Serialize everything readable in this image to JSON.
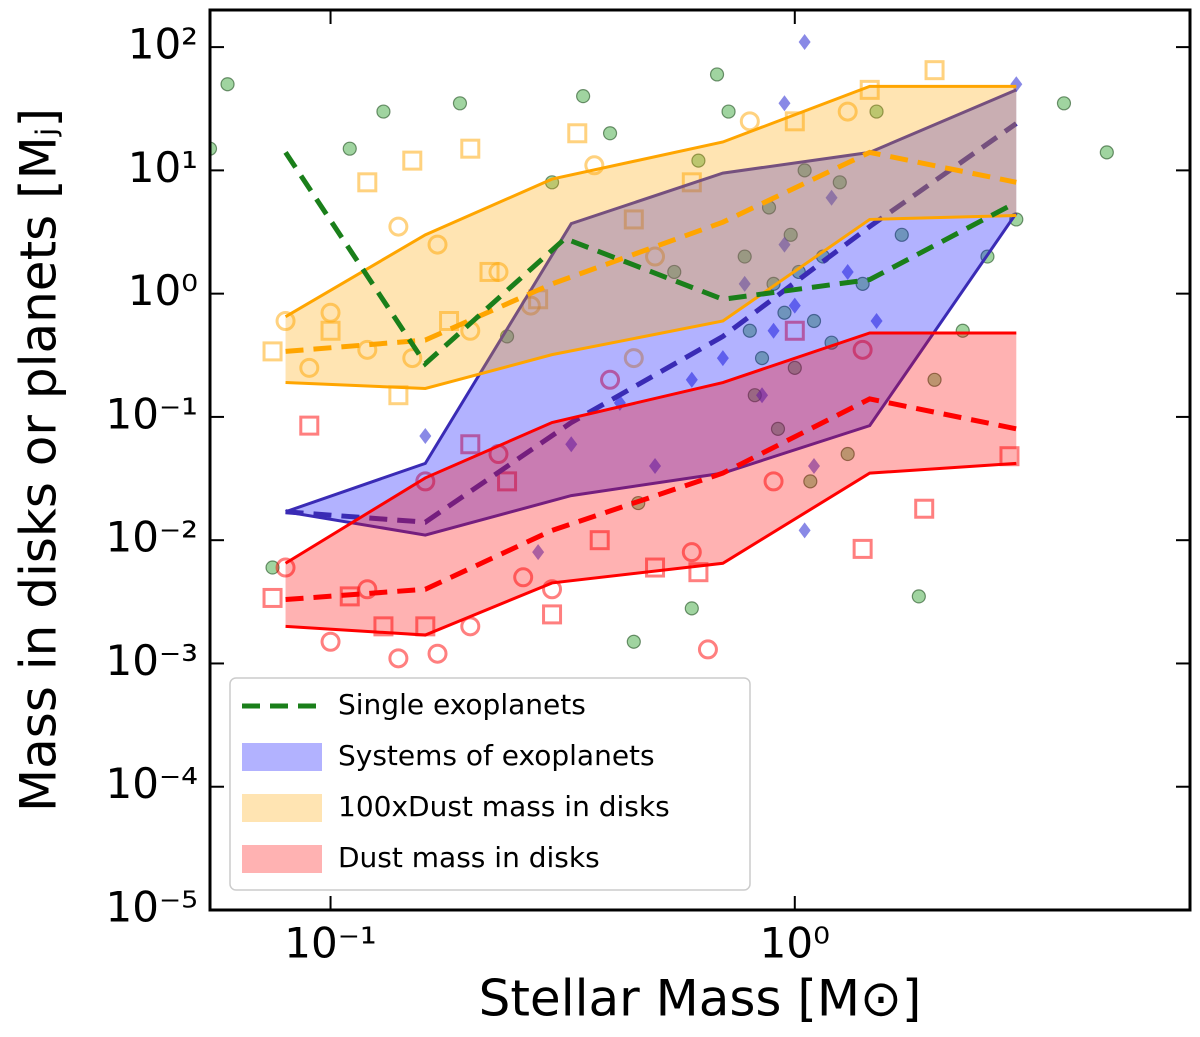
{
  "chart_data": {
    "type": "scatter",
    "xlabel": "Stellar Mass [M⊙]",
    "ylabel": "Mass in disks or planets [Mⱼ]",
    "xscale": "log",
    "yscale": "log",
    "xlim": [
      0.055,
      7.1
    ],
    "ylim": [
      1e-05,
      200
    ],
    "xticks": [
      {
        "value": 0.1,
        "label": "10⁻¹"
      },
      {
        "value": 1,
        "label": "10⁰"
      }
    ],
    "yticks": [
      {
        "value": 1e-05,
        "label": "10⁻⁵"
      },
      {
        "value": 0.0001,
        "label": "10⁻⁴"
      },
      {
        "value": 0.001,
        "label": "10⁻³"
      },
      {
        "value": 0.01,
        "label": "10⁻²"
      },
      {
        "value": 0.1,
        "label": "10⁻¹"
      },
      {
        "value": 1,
        "label": "10⁰"
      },
      {
        "value": 10,
        "label": "10¹"
      },
      {
        "value": 100,
        "label": "10²"
      }
    ],
    "legend": "lower left",
    "points": [
      {
        "marker": "circle",
        "filled": true,
        "color": "#2ca02c",
        "x": [
          0.055,
          0.06,
          0.075,
          0.11,
          0.13,
          0.19,
          0.24,
          0.3,
          0.4,
          0.45,
          0.55,
          0.6,
          0.68,
          0.72,
          0.78,
          0.8,
          0.85,
          0.88,
          0.9,
          0.92,
          0.95,
          0.98,
          1.0,
          1.02,
          1.05,
          1.08,
          1.1,
          1.15,
          1.2,
          1.25,
          1.3,
          1.4,
          1.5,
          1.7,
          2.0,
          2.3,
          2.6,
          3.0,
          3.8,
          4.7,
          0.46,
          0.35,
          1.85,
          0.62,
          0.82
        ],
        "values": [
          15,
          50,
          0.006,
          15,
          30,
          35,
          0.45,
          8,
          20,
          0.0015,
          1.5,
          0.0028,
          60,
          30,
          2,
          0.5,
          0.3,
          5,
          1.2,
          0.08,
          0.7,
          3,
          0.25,
          1.5,
          10,
          0.03,
          0.6,
          2,
          0.4,
          8,
          0.05,
          1.2,
          30,
          3,
          0.2,
          0.5,
          2,
          4,
          35,
          14,
          0.02,
          40,
          0.0035,
          12,
          0.15
        ]
      },
      {
        "marker": "diamond",
        "filled": true,
        "color": "#3b3bd6",
        "x": [
          0.16,
          0.28,
          0.33,
          0.42,
          0.5,
          0.6,
          0.7,
          0.78,
          0.85,
          0.9,
          0.95,
          1.0,
          1.05,
          1.1,
          1.2,
          1.3,
          1.5,
          3.0,
          1.05,
          0.95
        ],
        "values": [
          0.07,
          0.008,
          0.06,
          0.13,
          0.04,
          0.2,
          0.3,
          1.2,
          0.15,
          0.5,
          2.5,
          0.8,
          110,
          0.04,
          6,
          1.5,
          0.6,
          50,
          0.012,
          35
        ]
      },
      {
        "marker": "circle",
        "filled": false,
        "color": "#ffa500",
        "x": [
          0.08,
          0.09,
          0.1,
          0.12,
          0.14,
          0.15,
          0.17,
          0.2,
          0.23,
          0.27,
          0.37,
          0.5,
          0.8,
          1.3,
          0.45
        ],
        "values": [
          0.6,
          0.25,
          0.7,
          0.35,
          3.5,
          0.3,
          2.5,
          0.5,
          1.5,
          0.8,
          11,
          2,
          25,
          30,
          0.3
        ]
      },
      {
        "marker": "square",
        "filled": false,
        "color": "#ffa500",
        "x": [
          0.075,
          0.1,
          0.12,
          0.14,
          0.15,
          0.18,
          0.2,
          0.22,
          0.28,
          0.34,
          0.45,
          0.6,
          1.0,
          1.45,
          2.0
        ],
        "values": [
          0.34,
          0.5,
          8,
          0.15,
          12,
          0.6,
          15,
          1.5,
          0.9,
          20,
          4,
          8,
          25,
          45,
          65
        ]
      },
      {
        "marker": "circle",
        "filled": false,
        "color": "#ff0000",
        "x": [
          0.08,
          0.1,
          0.12,
          0.14,
          0.16,
          0.17,
          0.2,
          0.23,
          0.26,
          0.3,
          0.4,
          0.6,
          0.9,
          1.4,
          0.65
        ],
        "values": [
          0.006,
          0.0015,
          0.004,
          0.0011,
          0.03,
          0.0012,
          0.002,
          0.05,
          0.005,
          0.004,
          0.2,
          0.008,
          0.03,
          0.35,
          0.0013
        ]
      },
      {
        "marker": "square",
        "filled": false,
        "color": "#ff0000",
        "x": [
          0.075,
          0.09,
          0.11,
          0.13,
          0.16,
          0.2,
          0.24,
          0.3,
          0.38,
          0.5,
          0.62,
          1.0,
          1.4,
          1.9,
          2.9
        ],
        "values": [
          0.0034,
          0.085,
          0.0035,
          0.002,
          0.002,
          0.06,
          0.03,
          0.0025,
          0.01,
          0.006,
          0.0055,
          0.5,
          0.0085,
          0.018,
          0.048
        ]
      }
    ],
    "lines": [
      {
        "name": "Single exoplanets",
        "color": "#1a7f1a",
        "x": [
          0.08,
          0.16,
          0.32,
          0.7,
          1.45,
          3.0
        ],
        "values": [
          14,
          0.27,
          2.8,
          0.9,
          1.3,
          5.5
        ]
      }
    ],
    "bands": [
      {
        "name": "Systems of exoplanets",
        "color": "#0000ff",
        "edge_color": "#3a2bb5",
        "x": [
          0.08,
          0.16,
          0.33,
          0.7,
          1.45,
          3.0
        ],
        "upper": [
          0.017,
          0.042,
          3.7,
          9.5,
          14,
          45
        ],
        "lower": [
          0.017,
          0.011,
          0.023,
          0.035,
          0.085,
          4.5
        ],
        "median": [
          0.017,
          0.014,
          0.09,
          0.45,
          3.5,
          24
        ]
      },
      {
        "name": "100xDust mass in disks",
        "color": "#ffa500",
        "edge_color": "#ffa500",
        "x": [
          0.08,
          0.16,
          0.3,
          0.7,
          1.45,
          3.0
        ],
        "upper": [
          0.65,
          3.0,
          8.5,
          17,
          48,
          48
        ],
        "lower": [
          0.19,
          0.17,
          0.32,
          0.6,
          4.0,
          4.3
        ],
        "median": [
          0.34,
          0.42,
          1.2,
          3.8,
          14,
          8
        ]
      },
      {
        "name": "Dust mass in disks",
        "color": "#ff0000",
        "edge_color": "#ff0000",
        "x": [
          0.08,
          0.16,
          0.3,
          0.7,
          1.45,
          3.0
        ],
        "upper": [
          0.0065,
          0.032,
          0.09,
          0.19,
          0.48,
          0.48
        ],
        "lower": [
          0.002,
          0.0017,
          0.0045,
          0.0065,
          0.035,
          0.042
        ],
        "median": [
          0.0033,
          0.004,
          0.012,
          0.035,
          0.14,
          0.08
        ]
      }
    ]
  }
}
